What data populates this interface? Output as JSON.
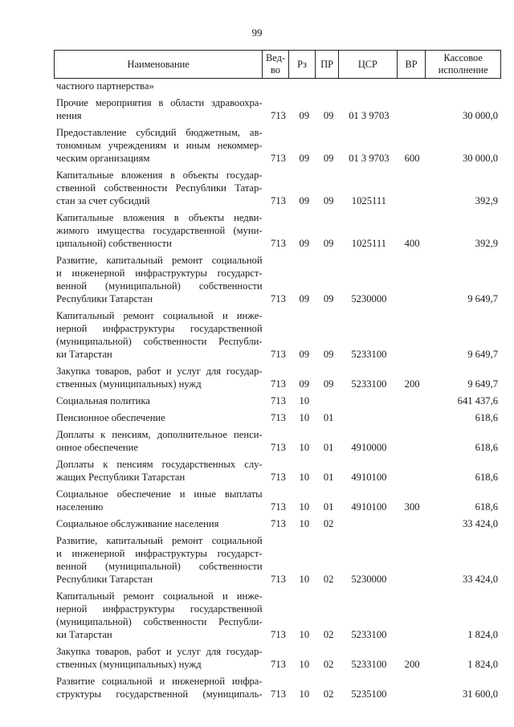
{
  "page_number": "99",
  "header": {
    "name": "Наименование",
    "ved": "Вед-\nво",
    "rz": "Рз",
    "pr": "ПР",
    "csr": "ЦСР",
    "vr": "ВР",
    "sum": "Кассовое\nисполнение"
  },
  "rows": [
    {
      "lines": [
        "частного партнерства»"
      ],
      "ved": "",
      "rz": "",
      "pr": "",
      "csr": "",
      "vr": "",
      "sum": ""
    },
    {
      "lines": [
        "Прочие мероприятия в области здравоохра-",
        "нения"
      ],
      "ved": "713",
      "rz": "09",
      "pr": "09",
      "csr": "01 3 9703",
      "vr": "",
      "sum": "30 000,0"
    },
    {
      "lines": [
        "Предоставление субсидий бюджетным, ав-",
        "тономным учреждениям и иным некоммер-",
        "ческим организациям"
      ],
      "ved": "713",
      "rz": "09",
      "pr": "09",
      "csr": "01 3 9703",
      "vr": "600",
      "sum": "30 000,0"
    },
    {
      "lines": [
        "Капитальные вложения в объекты государ-",
        "ственной собственности Республики Татар-",
        "стан за счет субсидий"
      ],
      "ved": "713",
      "rz": "09",
      "pr": "09",
      "csr": "1025111",
      "vr": "",
      "sum": "392,9"
    },
    {
      "lines": [
        "Капитальные вложения в объекты недви-",
        "жимого имущества государственной (муни-",
        "ципальной) собственности"
      ],
      "ved": "713",
      "rz": "09",
      "pr": "09",
      "csr": "1025111",
      "vr": "400",
      "sum": "392,9"
    },
    {
      "lines": [
        "Развитие, капитальный ремонт социальной",
        "и инженерной инфраструктуры государст-",
        "венной (муниципальной) собственности",
        "Республики Татарстан"
      ],
      "ved": "713",
      "rz": "09",
      "pr": "09",
      "csr": "5230000",
      "vr": "",
      "sum": "9 649,7"
    },
    {
      "lines": [
        "Капитальный ремонт социальной и инже-",
        "нерной инфраструктуры государственной",
        "(муниципальной) собственности Республи-",
        "ки Татарстан"
      ],
      "ved": "713",
      "rz": "09",
      "pr": "09",
      "csr": "5233100",
      "vr": "",
      "sum": "9 649,7"
    },
    {
      "lines": [
        "Закупка товаров, работ и услуг для государ-",
        "ственных (муниципальных) нужд"
      ],
      "ved": "713",
      "rz": "09",
      "pr": "09",
      "csr": "5233100",
      "vr": "200",
      "sum": "9 649,7"
    },
    {
      "lines": [
        "Социальная политика"
      ],
      "ved": "713",
      "rz": "10",
      "pr": "",
      "csr": "",
      "vr": "",
      "sum": "641 437,6"
    },
    {
      "lines": [
        "Пенсионное обеспечение"
      ],
      "ved": "713",
      "rz": "10",
      "pr": "01",
      "csr": "",
      "vr": "",
      "sum": "618,6"
    },
    {
      "lines": [
        "Доплаты к пенсиям, дополнительное пенси-",
        "онное обеспечение"
      ],
      "ved": "713",
      "rz": "10",
      "pr": "01",
      "csr": "4910000",
      "vr": "",
      "sum": "618,6"
    },
    {
      "lines": [
        "Доплаты к пенсиям государственных слу-",
        "жащих Республики Татарстан"
      ],
      "ved": "713",
      "rz": "10",
      "pr": "01",
      "csr": "4910100",
      "vr": "",
      "sum": "618,6"
    },
    {
      "lines": [
        "Социальное обеспечение и иные выплаты",
        "населению"
      ],
      "ved": "713",
      "rz": "10",
      "pr": "01",
      "csr": "4910100",
      "vr": "300",
      "sum": "618,6"
    },
    {
      "lines": [
        "Социальное обслуживание населения"
      ],
      "ved": "713",
      "rz": "10",
      "pr": "02",
      "csr": "",
      "vr": "",
      "sum": "33 424,0"
    },
    {
      "lines": [
        "Развитие, капитальный ремонт социальной",
        "и инженерной инфраструктуры государст-",
        "венной (муниципальной) собственности",
        "Республики Татарстан"
      ],
      "ved": "713",
      "rz": "10",
      "pr": "02",
      "csr": "5230000",
      "vr": "",
      "sum": "33 424,0"
    },
    {
      "lines": [
        "Капитальный ремонт социальной и инже-",
        "нерной инфраструктуры государственной",
        "(муниципальной) собственности Республи-",
        "ки Татарстан"
      ],
      "ved": "713",
      "rz": "10",
      "pr": "02",
      "csr": "5233100",
      "vr": "",
      "sum": "1 824,0"
    },
    {
      "lines": [
        "Закупка товаров, работ и услуг для государ-",
        "ственных (муниципальных) нужд"
      ],
      "ved": "713",
      "rz": "10",
      "pr": "02",
      "csr": "5233100",
      "vr": "200",
      "sum": "1 824,0"
    },
    {
      "lines": [
        "Развитие социальной и инженерной инфра-",
        "структуры государственной (муниципаль-"
      ],
      "ved": "713",
      "rz": "10",
      "pr": "02",
      "csr": "5235100",
      "vr": "",
      "sum": "31 600,0"
    }
  ]
}
